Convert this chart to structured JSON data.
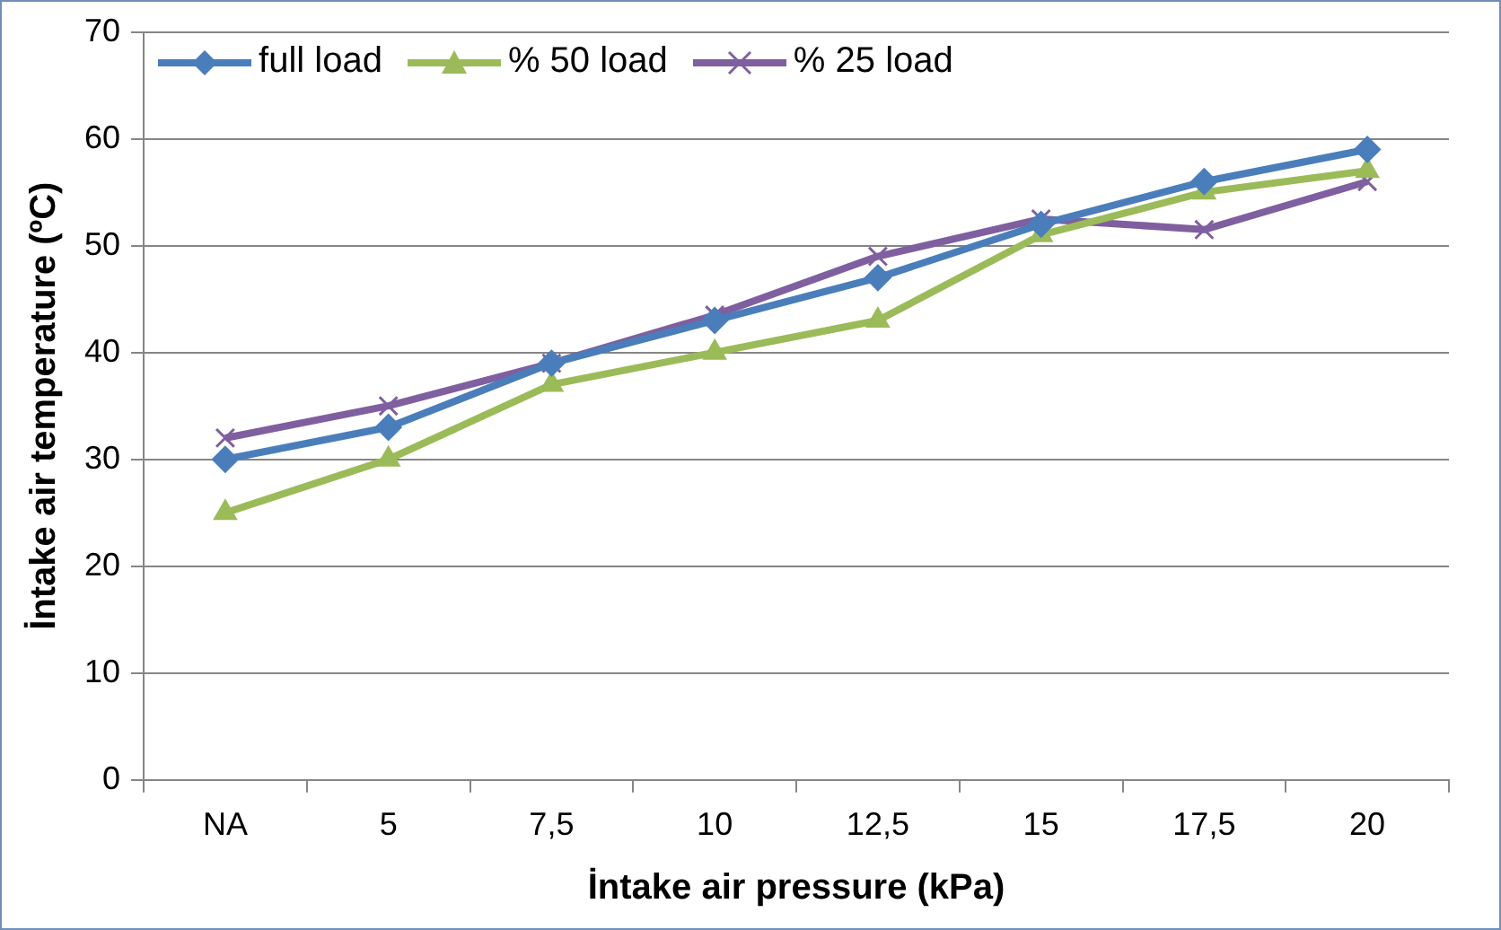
{
  "chart_data": {
    "type": "line",
    "xlabel": "İntake air pressure (kPa)",
    "ylabel": "İntake air temperature (ºC)",
    "categories": [
      "NA",
      "5",
      "7,5",
      "10",
      "12,5",
      "15",
      "17,5",
      "20"
    ],
    "series": [
      {
        "name": "full load",
        "color": "#4a7ebb",
        "marker": "diamond",
        "values": [
          30,
          33,
          39,
          43,
          47,
          52,
          56,
          59
        ]
      },
      {
        "name": "% 50 load",
        "color": "#9bbb59",
        "marker": "triangle",
        "values": [
          25,
          30,
          37,
          40,
          43,
          51,
          55,
          57
        ]
      },
      {
        "name": "% 25 load",
        "color": "#7f5f9f",
        "marker": "cross",
        "values": [
          32,
          35,
          39,
          43.5,
          49,
          52.5,
          51.5,
          56
        ]
      }
    ],
    "ylim": [
      0,
      70
    ],
    "yticks": [
      0,
      10,
      20,
      30,
      40,
      50,
      60,
      70
    ],
    "grid": "y",
    "legend": "top left",
    "line_style": "solid"
  }
}
